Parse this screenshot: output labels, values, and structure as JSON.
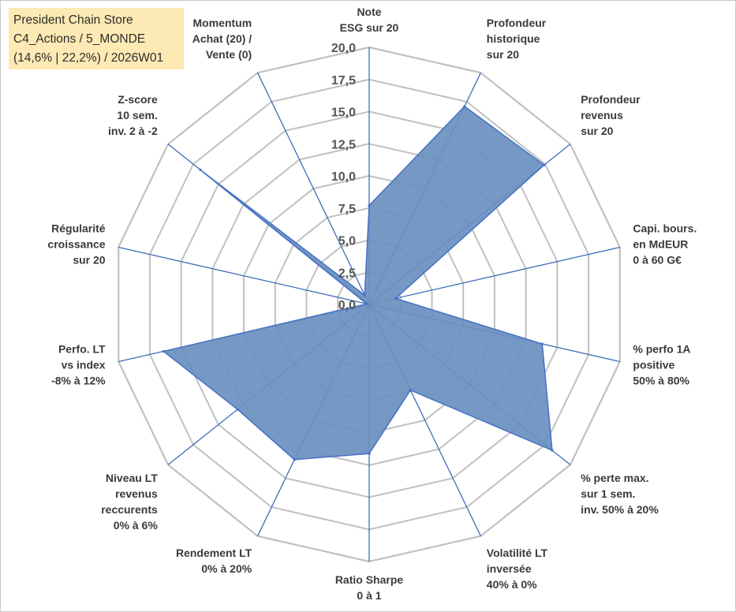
{
  "info_box": {
    "line1": "President Chain Store",
    "line2": "C4_Actions / 5_MONDE",
    "line3": "(14,6% | 22,2%) / 2026W01"
  },
  "colors": {
    "grid": "#c0c0c0",
    "spoke": "#3f6fba",
    "fill": "#6a8fbf",
    "stroke": "#4472c4",
    "info_bg": "#fde9b3"
  },
  "chart_data": {
    "type": "radar",
    "title": "",
    "rmin": 0,
    "rmax": 20,
    "grid_levels": [
      0,
      2.5,
      5,
      7.5,
      10,
      12.5,
      15,
      17.5,
      20
    ],
    "tick_labels": [
      "0,0",
      "2,5",
      "5,0",
      "7,5",
      "10,0",
      "12,5",
      "15,0",
      "17,5",
      "20,0"
    ],
    "categories": [
      [
        "Note",
        "ESG sur 20"
      ],
      [
        "Profondeur",
        "historique",
        "sur 20"
      ],
      [
        "Profondeur",
        "revenus",
        "sur 20"
      ],
      [
        "Capi. bours.",
        "en MdEUR",
        "0 à 60 G€"
      ],
      [
        "% perfo 1A",
        "positive",
        "50% à 80%"
      ],
      [
        "% perte max.",
        "sur 1 sem.",
        "inv. 50% à 20%"
      ],
      [
        "Volatilité LT",
        "inversée",
        "40% à 0%"
      ],
      [
        "Ratio Sharpe",
        "0 à 1"
      ],
      [
        "Rendement LT",
        "0% à 20%"
      ],
      [
        "Niveau LT",
        "revenus",
        "reccurents",
        "0% à 6%"
      ],
      [
        "Perfo. LT",
        "vs index",
        "-8% à 12%"
      ],
      [
        "Régularité",
        "croissance",
        "sur 20"
      ],
      [
        "Z-score",
        "10 sem.",
        "inv. 2 à -2"
      ],
      [
        "Momentum",
        "Achat (20) /",
        "Vente (0)"
      ]
    ],
    "series": [
      {
        "values": [
          7.7,
          17.1,
          17.4,
          2.1,
          13.8,
          18.2,
          7.4,
          11.6,
          13.4,
          13.1,
          16.4,
          0.2,
          16.8,
          0.8
        ]
      }
    ]
  }
}
